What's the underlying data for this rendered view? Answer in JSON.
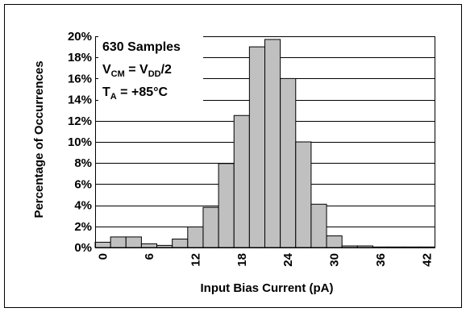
{
  "chart_data": {
    "type": "bar",
    "title": "",
    "xlabel": "Input Bias Current (pA)",
    "ylabel": "Percentage of Occurrences",
    "xlim": [
      -1,
      43
    ],
    "ylim": [
      0,
      20
    ],
    "bin_width": 2,
    "x_ticks": [
      0,
      6,
      12,
      18,
      24,
      30,
      36,
      42
    ],
    "x_tick_labels": [
      "0",
      "6",
      "12",
      "18",
      "24",
      "30",
      "36",
      "42"
    ],
    "y_ticks": [
      0,
      2,
      4,
      6,
      8,
      10,
      12,
      14,
      16,
      18,
      20
    ],
    "y_tick_labels": [
      "0%",
      "2%",
      "4%",
      "6%",
      "8%",
      "10%",
      "12%",
      "14%",
      "16%",
      "18%",
      "20%"
    ],
    "bins": [
      -1,
      1,
      3,
      5,
      7,
      9,
      11,
      13,
      15,
      17,
      19,
      21,
      23,
      25,
      27,
      29,
      31,
      33,
      35,
      37,
      39,
      41
    ],
    "values": [
      0.5,
      1.0,
      1.0,
      0.35,
      0.2,
      0.8,
      1.95,
      3.8,
      7.95,
      12.5,
      19.0,
      19.7,
      16.0,
      10.0,
      4.1,
      1.1,
      0.15,
      0.15,
      0.05,
      0.05,
      0.05,
      0.05
    ],
    "grid": true,
    "bar_color": "#c0c0c0",
    "annotations": {
      "samples": "630 Samples",
      "vcm_main": "V",
      "vcm_sub": "CM",
      "vcm_mid": " = V",
      "vcm_sub2": "DD",
      "vcm_tail": "/2",
      "ta_main": "T",
      "ta_sub": "A",
      "ta_tail": " = +85°C"
    }
  }
}
